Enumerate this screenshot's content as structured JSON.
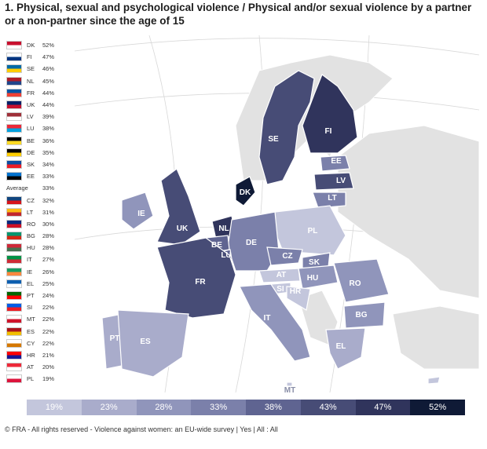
{
  "title": "1. Physical, sexual and psychological violence / Physical and/or sexual violence by a partner or a non-partner since the age of 15",
  "countries": [
    {
      "code": "DK",
      "value": "52%",
      "flag": [
        "#c8102e",
        "#ffffff"
      ]
    },
    {
      "code": "FI",
      "value": "47%",
      "flag": [
        "#ffffff",
        "#003580"
      ]
    },
    {
      "code": "SE",
      "value": "46%",
      "flag": [
        "#006aa7",
        "#fecc00"
      ]
    },
    {
      "code": "NL",
      "value": "45%",
      "flag": [
        "#ae1c28",
        "#21468b"
      ]
    },
    {
      "code": "FR",
      "value": "44%",
      "flag": [
        "#0055a4",
        "#ef4135"
      ]
    },
    {
      "code": "UK",
      "value": "44%",
      "flag": [
        "#012169",
        "#c8102e"
      ]
    },
    {
      "code": "LV",
      "value": "39%",
      "flag": [
        "#9e3039",
        "#ffffff"
      ]
    },
    {
      "code": "LU",
      "value": "38%",
      "flag": [
        "#ed2939",
        "#00a1de"
      ]
    },
    {
      "code": "BE",
      "value": "36%",
      "flag": [
        "#000000",
        "#fdda24"
      ]
    },
    {
      "code": "DE",
      "value": "35%",
      "flag": [
        "#000000",
        "#ffce00"
      ]
    },
    {
      "code": "SK",
      "value": "34%",
      "flag": [
        "#0b4ea2",
        "#ee1c25"
      ]
    },
    {
      "code": "EE",
      "value": "33%",
      "flag": [
        "#0072ce",
        "#000000"
      ]
    },
    {
      "code": "Average",
      "value": "33%",
      "flag": null
    },
    {
      "code": "CZ",
      "value": "32%",
      "flag": [
        "#11457e",
        "#d7141a"
      ]
    },
    {
      "code": "LT",
      "value": "31%",
      "flag": [
        "#fdb913",
        "#c1272d"
      ]
    },
    {
      "code": "RO",
      "value": "30%",
      "flag": [
        "#002b7f",
        "#ce1126"
      ]
    },
    {
      "code": "BG",
      "value": "28%",
      "flag": [
        "#00966e",
        "#d62612"
      ]
    },
    {
      "code": "HU",
      "value": "28%",
      "flag": [
        "#ce2939",
        "#477050"
      ]
    },
    {
      "code": "IT",
      "value": "27%",
      "flag": [
        "#009246",
        "#ce2b37"
      ]
    },
    {
      "code": "IE",
      "value": "26%",
      "flag": [
        "#169b62",
        "#ff883e"
      ]
    },
    {
      "code": "EL",
      "value": "25%",
      "flag": [
        "#0d5eaf",
        "#ffffff"
      ]
    },
    {
      "code": "PT",
      "value": "24%",
      "flag": [
        "#006600",
        "#ff0000"
      ]
    },
    {
      "code": "SI",
      "value": "22%",
      "flag": [
        "#005ce5",
        "#ed1c24"
      ]
    },
    {
      "code": "MT",
      "value": "22%",
      "flag": [
        "#ffffff",
        "#cf142b"
      ]
    },
    {
      "code": "ES",
      "value": "22%",
      "flag": [
        "#aa151b",
        "#f1bf00"
      ]
    },
    {
      "code": "CY",
      "value": "22%",
      "flag": [
        "#ffffff",
        "#d57800"
      ]
    },
    {
      "code": "HR",
      "value": "21%",
      "flag": [
        "#ff0000",
        "#171796"
      ]
    },
    {
      "code": "AT",
      "value": "20%",
      "flag": [
        "#ed2939",
        "#ffffff"
      ]
    },
    {
      "code": "PL",
      "value": "19%",
      "flag": [
        "#ffffff",
        "#dc143c"
      ]
    }
  ],
  "map_labels": [
    "SE",
    "FI",
    "EE",
    "LV",
    "LT",
    "DK",
    "IE",
    "UK",
    "NL",
    "PL",
    "DE",
    "BE",
    "LU",
    "CZ",
    "SK",
    "FR",
    "AT",
    "HU",
    "RO",
    "SI",
    "HR",
    "IT",
    "BG",
    "PT",
    "ES",
    "EL",
    "MT"
  ],
  "legend": [
    {
      "label": "19%",
      "color": "#c3c6dc",
      "text_color": "#ffffff"
    },
    {
      "label": "23%",
      "color": "#a9accb",
      "text_color": "#ffffff"
    },
    {
      "label": "28%",
      "color": "#9095bb",
      "text_color": "#ffffff"
    },
    {
      "label": "33%",
      "color": "#7b80aa",
      "text_color": "#ffffff"
    },
    {
      "label": "38%",
      "color": "#5f6491",
      "text_color": "#ffffff"
    },
    {
      "label": "43%",
      "color": "#474c76",
      "text_color": "#ffffff"
    },
    {
      "label": "47%",
      "color": "#30345c",
      "text_color": "#ffffff"
    },
    {
      "label": "52%",
      "color": "#0f1a36",
      "text_color": "#ffffff"
    }
  ],
  "footer": "© FRA - All rights reserved - Violence against women: an EU-wide survey | Yes | All : All"
}
